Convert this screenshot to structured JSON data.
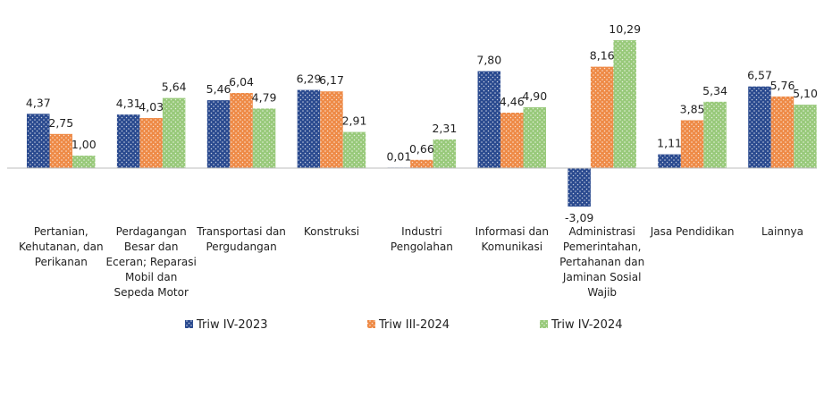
{
  "chart_data": {
    "type": "bar",
    "categories": [
      "Pertanian, Kehutanan, dan Perikanan",
      "Perdagangan Besar dan Eceran; Reparasi Mobil dan Sepeda Motor",
      "Transportasi dan Pergudangan",
      "Konstruksi",
      "Industri Pengolahan",
      "Informasi dan Komunikasi",
      "Administrasi Pemerintahan, Pertahanan dan Jaminan Sosial Wajib",
      "Jasa Pendidikan",
      "Lainnya"
    ],
    "category_lines": [
      [
        "Pertanian,",
        "Kehutanan, dan",
        "Perikanan"
      ],
      [
        "Perdagangan",
        "Besar dan",
        "Eceran; Reparasi",
        "Mobil dan",
        "Sepeda Motor"
      ],
      [
        "Transportasi dan",
        "Pergudangan"
      ],
      [
        "Konstruksi"
      ],
      [
        "Industri",
        "Pengolahan"
      ],
      [
        "Informasi dan",
        "Komunikasi"
      ],
      [
        "Administrasi",
        "Pemerintahan,",
        "Pertahanan dan",
        "Jaminan Sosial",
        "Wajib"
      ],
      [
        "Jasa Pendidikan"
      ],
      [
        "Lainnya"
      ]
    ],
    "series": [
      {
        "name": "Triw IV-2023",
        "color": "#2a4a8f",
        "values": [
          4.37,
          4.31,
          5.46,
          6.29,
          0.01,
          7.8,
          -3.09,
          1.11,
          6.57
        ]
      },
      {
        "name": "Triw III-2024",
        "color": "#ee8a46",
        "values": [
          2.75,
          4.03,
          6.04,
          6.17,
          0.66,
          4.46,
          8.16,
          3.85,
          5.76
        ]
      },
      {
        "name": "Triw IV-2024",
        "color": "#98c97a",
        "values": [
          1.0,
          5.64,
          4.79,
          2.91,
          2.31,
          4.9,
          10.29,
          5.34,
          5.1
        ]
      }
    ],
    "value_labels": [
      [
        "4,37",
        "4,31",
        "5,46",
        "6,29",
        "0,01",
        "7,80",
        "-3,09",
        "1,11",
        "6,57"
      ],
      [
        "2,75",
        "4,03",
        "6,04",
        "6,17",
        "0,66",
        "4,46",
        "8,16",
        "3,85",
        "5,76"
      ],
      [
        "1,00",
        "5,64",
        "4,79",
        "2,91",
        "2,31",
        "4,90",
        "10,29",
        "5,34",
        "5,10"
      ]
    ],
    "title": "",
    "xlabel": "",
    "ylabel": "",
    "ylim": [
      -3.5,
      10.5
    ],
    "grid": false,
    "legend_position": "bottom"
  }
}
